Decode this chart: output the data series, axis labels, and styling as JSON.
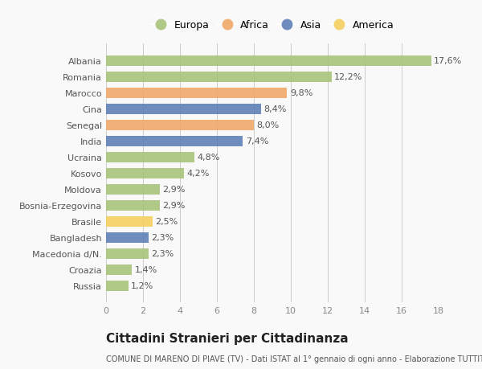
{
  "categories": [
    "Albania",
    "Romania",
    "Marocco",
    "Cina",
    "Senegal",
    "India",
    "Ucraina",
    "Kosovo",
    "Moldova",
    "Bosnia-Erzegovina",
    "Brasile",
    "Bangladesh",
    "Macedonia d/N.",
    "Croazia",
    "Russia"
  ],
  "values": [
    17.6,
    12.2,
    9.8,
    8.4,
    8.0,
    7.4,
    4.8,
    4.2,
    2.9,
    2.9,
    2.5,
    2.3,
    2.3,
    1.4,
    1.2
  ],
  "labels": [
    "17,6%",
    "12,2%",
    "9,8%",
    "8,4%",
    "8,0%",
    "7,4%",
    "4,8%",
    "4,2%",
    "2,9%",
    "2,9%",
    "2,5%",
    "2,3%",
    "2,3%",
    "1,4%",
    "1,2%"
  ],
  "continents": [
    "Europa",
    "Europa",
    "Africa",
    "Asia",
    "Africa",
    "Asia",
    "Europa",
    "Europa",
    "Europa",
    "Europa",
    "America",
    "Asia",
    "Europa",
    "Europa",
    "Europa"
  ],
  "colors": {
    "Europa": "#a8c47a",
    "Africa": "#f0a86a",
    "Asia": "#6080b8",
    "America": "#f5d060"
  },
  "legend_order": [
    "Europa",
    "Africa",
    "Asia",
    "America"
  ],
  "xlim": [
    0,
    18
  ],
  "xticks": [
    0,
    2,
    4,
    6,
    8,
    10,
    12,
    14,
    16,
    18
  ],
  "title": "Cittadini Stranieri per Cittadinanza",
  "subtitle": "COMUNE DI MARENO DI PIAVE (TV) - Dati ISTAT al 1° gennaio di ogni anno - Elaborazione TUTTITALIA.IT",
  "background_color": "#f9f9f9",
  "bar_height": 0.65,
  "label_fontsize": 8,
  "ytick_fontsize": 8,
  "xtick_fontsize": 8,
  "title_fontsize": 11,
  "subtitle_fontsize": 7,
  "legend_fontsize": 9
}
